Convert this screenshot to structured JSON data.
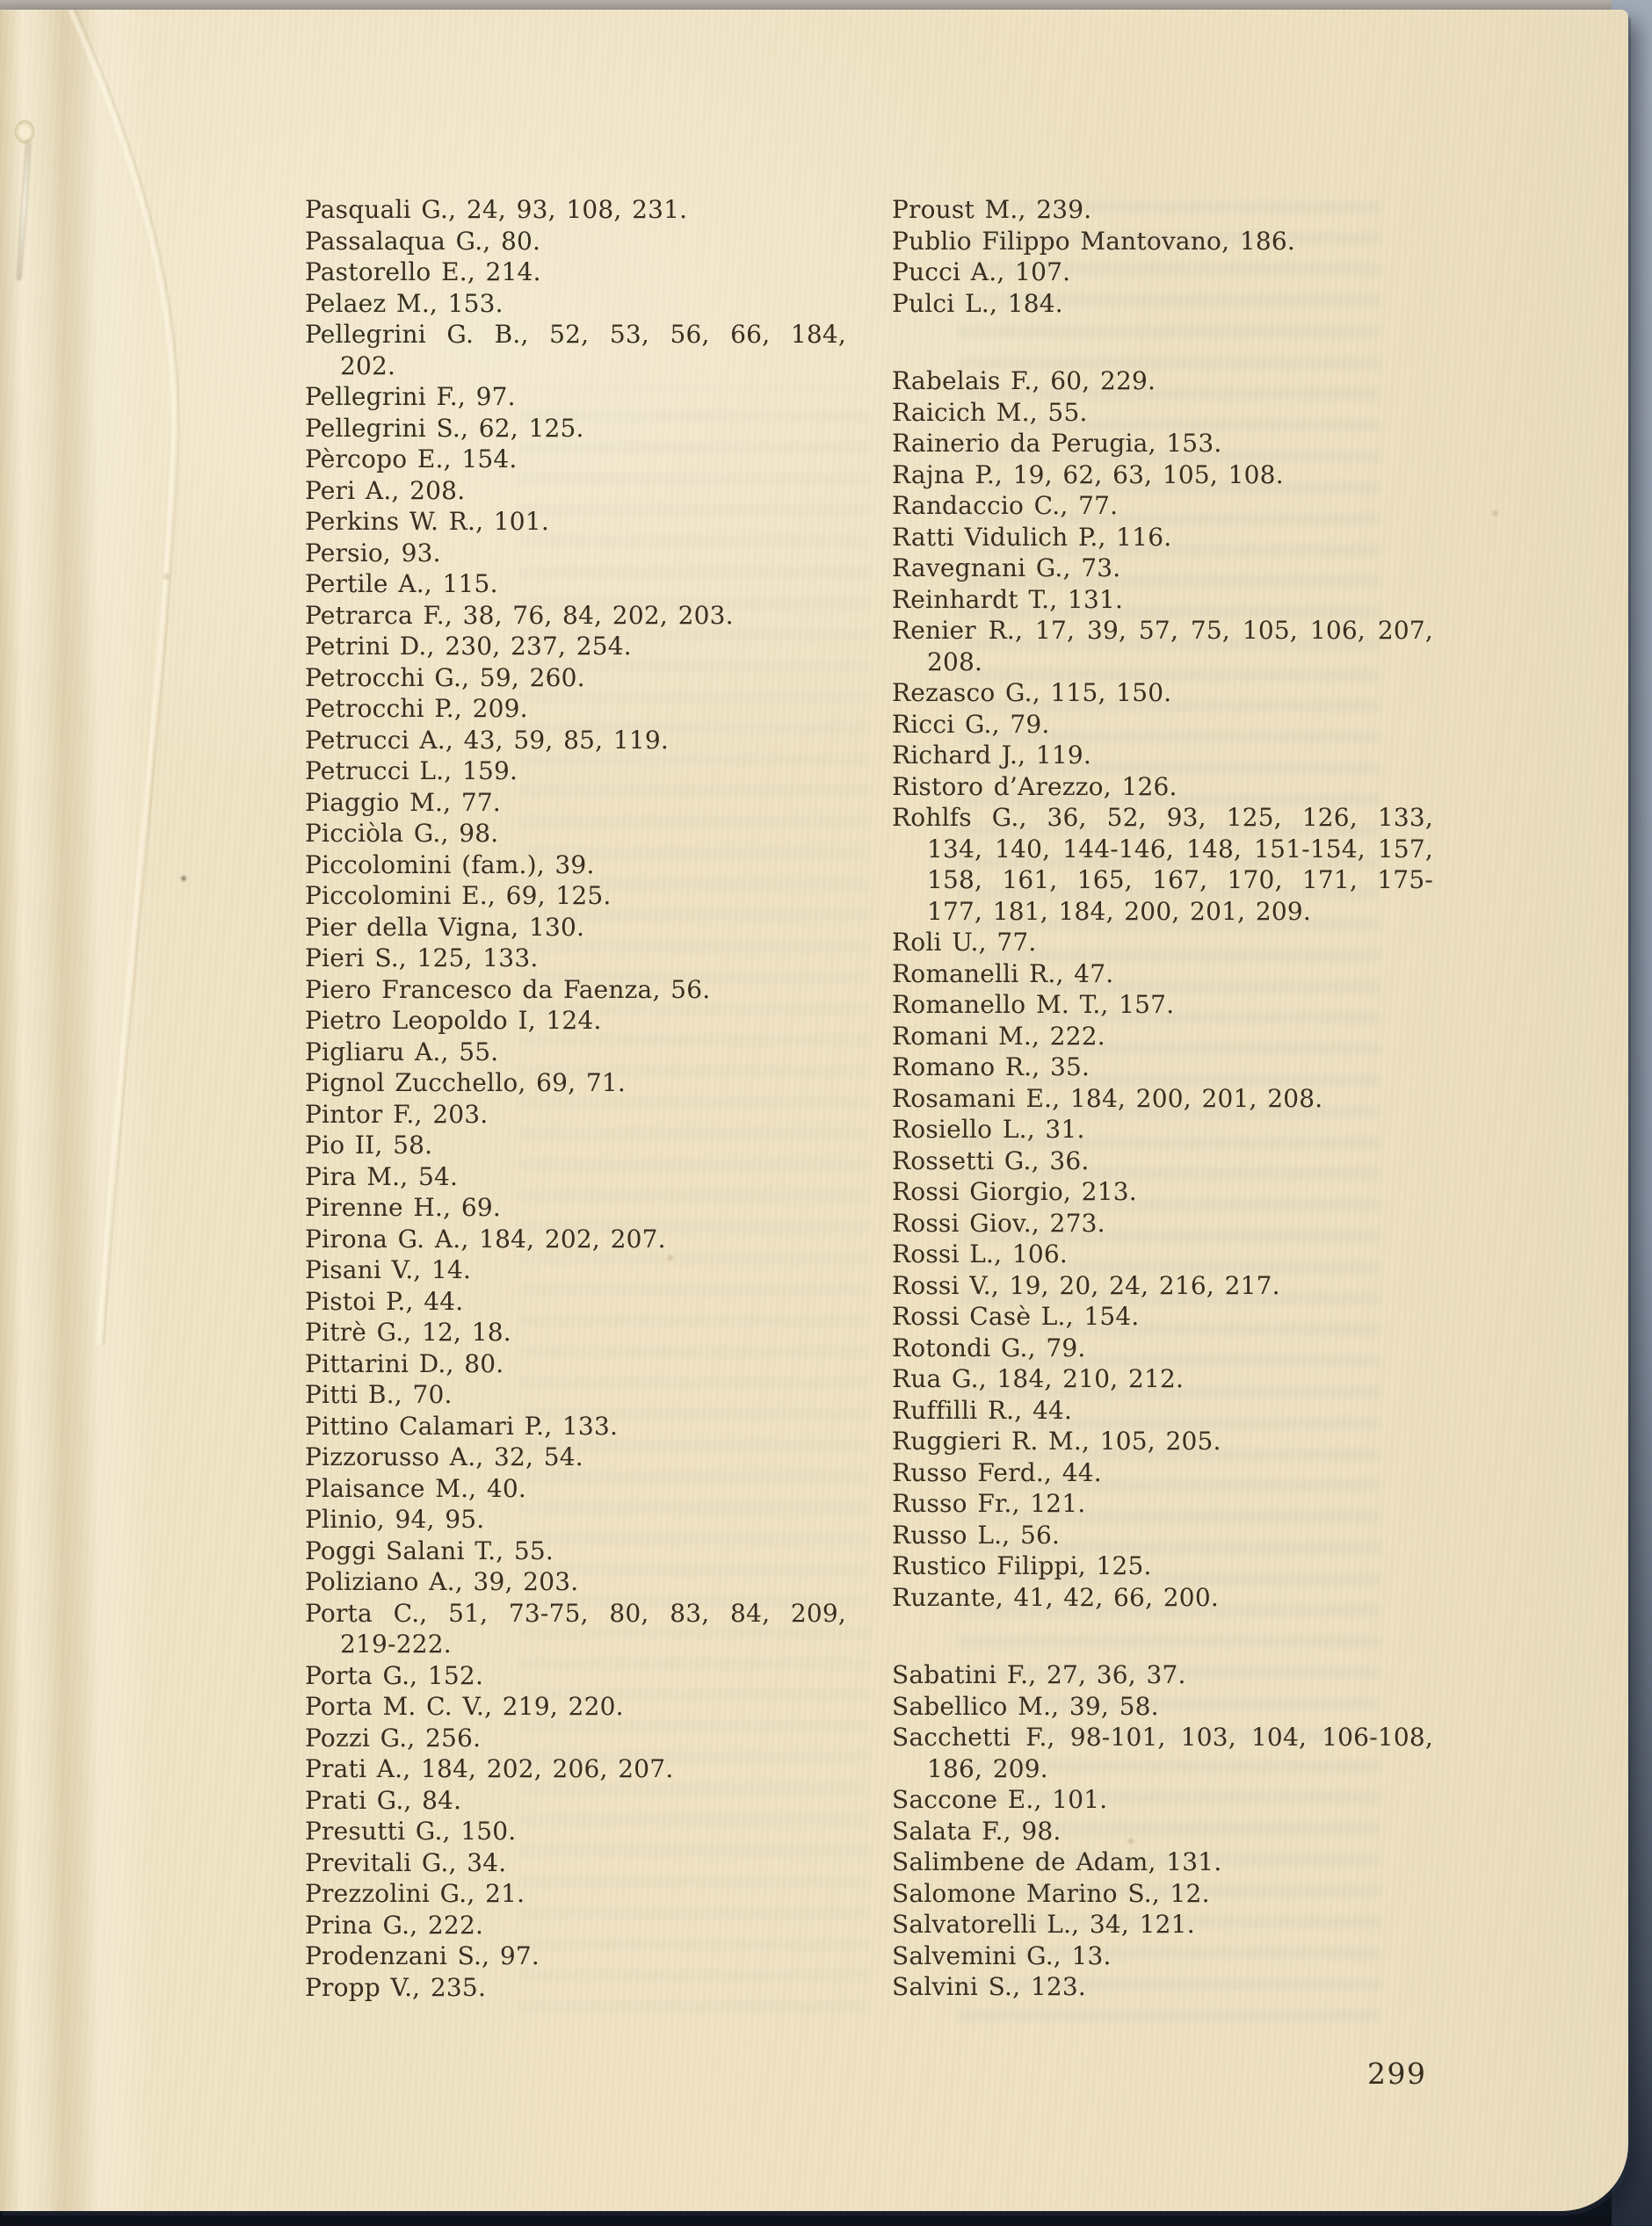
{
  "document": {
    "page_number": "299",
    "colors": {
      "paper": "#efe2c2",
      "ink": "#382e20",
      "scan_background_top": "#a8a29a",
      "scan_background_right": "#8d96a6",
      "scan_background_bottom": "#11151d"
    },
    "index": {
      "left_column": {
        "groups": [
          {
            "entries": [
              [
                "Pasquali G., 24, 93, 108, 231."
              ],
              [
                "Passalaqua G., 80."
              ],
              [
                "Pastorello E., 214."
              ],
              [
                "Pelaez M., 153."
              ],
              [
                "Pellegrini G. B., 52, 53, 56, 66, 184,",
                "202."
              ],
              [
                "Pellegrini F., 97."
              ],
              [
                "Pellegrini S., 62, 125."
              ],
              [
                "Pèrcopo E., 154."
              ],
              [
                "Peri A., 208."
              ],
              [
                "Perkins W. R., 101."
              ],
              [
                "Persio, 93."
              ],
              [
                "Pertile A., 115."
              ],
              [
                "Petrarca F., 38, 76, 84, 202, 203."
              ],
              [
                "Petrini D., 230, 237, 254."
              ],
              [
                "Petrocchi G., 59, 260."
              ],
              [
                "Petrocchi P., 209."
              ],
              [
                "Petrucci A., 43, 59, 85, 119."
              ],
              [
                "Petrucci L., 159."
              ],
              [
                "Piaggio M., 77."
              ],
              [
                "Picciòla G., 98."
              ],
              [
                "Piccolomini (fam.), 39."
              ],
              [
                "Piccolomini E., 69, 125."
              ],
              [
                "Pier della Vigna, 130."
              ],
              [
                "Pieri S., 125, 133."
              ],
              [
                "Piero Francesco da Faenza, 56."
              ],
              [
                "Pietro Leopoldo I, 124."
              ],
              [
                "Pigliaru A., 55."
              ],
              [
                "Pignol Zucchello, 69, 71."
              ],
              [
                "Pintor F., 203."
              ],
              [
                "Pio II, 58."
              ],
              [
                "Pira M., 54."
              ],
              [
                "Pirenne H., 69."
              ],
              [
                "Pirona G. A., 184, 202, 207."
              ],
              [
                "Pisani V., 14."
              ],
              [
                "Pistoi P., 44."
              ],
              [
                "Pitrè G., 12, 18."
              ],
              [
                "Pittarini D., 80."
              ],
              [
                "Pitti B., 70."
              ],
              [
                "Pittino Calamari P., 133."
              ],
              [
                "Pizzorusso A., 32, 54."
              ],
              [
                "Plaisance M., 40."
              ],
              [
                "Plinio, 94, 95."
              ],
              [
                "Poggi Salani T., 55."
              ],
              [
                "Poliziano A., 39, 203."
              ],
              [
                "Porta C., 51, 73-75, 80, 83, 84, 209,",
                "219-222."
              ],
              [
                "Porta G., 152."
              ],
              [
                "Porta M. C. V., 219, 220."
              ],
              [
                "Pozzi G., 256."
              ],
              [
                "Prati A., 184, 202, 206, 207."
              ],
              [
                "Prati G., 84."
              ],
              [
                "Presutti G., 150."
              ],
              [
                "Previtali G., 34."
              ],
              [
                "Prezzolini G., 21."
              ],
              [
                "Prina G., 222."
              ],
              [
                "Prodenzani S., 97."
              ],
              [
                "Propp V., 235."
              ]
            ]
          }
        ]
      },
      "right_column": {
        "groups": [
          {
            "entries": [
              [
                "Proust M., 239."
              ],
              [
                "Publio Filippo Mantovano, 186."
              ],
              [
                "Pucci A., 107."
              ],
              [
                "Pulci L., 184."
              ]
            ]
          },
          {
            "entries": [
              [
                "Rabelais F., 60, 229."
              ],
              [
                "Raicich M., 55."
              ],
              [
                "Rainerio da Perugia, 153."
              ],
              [
                "Rajna P., 19, 62, 63, 105, 108."
              ],
              [
                "Randaccio C., 77."
              ],
              [
                "Ratti Vidulich P., 116."
              ],
              [
                "Ravegnani G., 73."
              ],
              [
                "Reinhardt T., 131."
              ],
              [
                "Renier R., 17, 39, 57, 75, 105, 106, 207,",
                "208."
              ],
              [
                "Rezasco G., 115, 150."
              ],
              [
                "Ricci G., 79."
              ],
              [
                "Richard J., 119."
              ],
              [
                "Ristoro d’Arezzo, 126."
              ],
              [
                "Rohlfs G., 36, 52, 93, 125, 126, 133,",
                "134, 140, 144-146, 148, 151-154, 157,",
                "158, 161, 165, 167, 170, 171, 175-",
                "177, 181, 184, 200, 201, 209."
              ],
              [
                "Roli U., 77."
              ],
              [
                "Romanelli R., 47."
              ],
              [
                "Romanello M. T., 157."
              ],
              [
                "Romani M., 222."
              ],
              [
                "Romano R., 35."
              ],
              [
                "Rosamani E., 184, 200, 201, 208."
              ],
              [
                "Rosiello L., 31."
              ],
              [
                "Rossetti G., 36."
              ],
              [
                "Rossi Giorgio, 213."
              ],
              [
                "Rossi Giov., 273."
              ],
              [
                "Rossi L., 106."
              ],
              [
                "Rossi V., 19, 20, 24, 216, 217."
              ],
              [
                "Rossi Casè L., 154."
              ],
              [
                "Rotondi G., 79."
              ],
              [
                "Rua G., 184, 210, 212."
              ],
              [
                "Ruffilli R., 44."
              ],
              [
                "Ruggieri R. M., 105, 205."
              ],
              [
                "Russo Ferd., 44."
              ],
              [
                "Russo Fr., 121."
              ],
              [
                "Russo L., 56."
              ],
              [
                "Rustico Filippi, 125."
              ],
              [
                "Ruzante, 41, 42, 66, 200."
              ]
            ]
          },
          {
            "entries": [
              [
                "Sabatini F., 27, 36, 37."
              ],
              [
                "Sabellico M., 39, 58."
              ],
              [
                "Sacchetti F., 98-101, 103, 104, 106-108,",
                "186, 209."
              ],
              [
                "Saccone E., 101."
              ],
              [
                "Salata F., 98."
              ],
              [
                "Salimbene de Adam, 131."
              ],
              [
                "Salomone Marino S., 12."
              ],
              [
                "Salvatorelli L., 34, 121."
              ],
              [
                "Salvemini G., 13."
              ],
              [
                "Salvini S., 123."
              ]
            ]
          }
        ]
      }
    }
  }
}
